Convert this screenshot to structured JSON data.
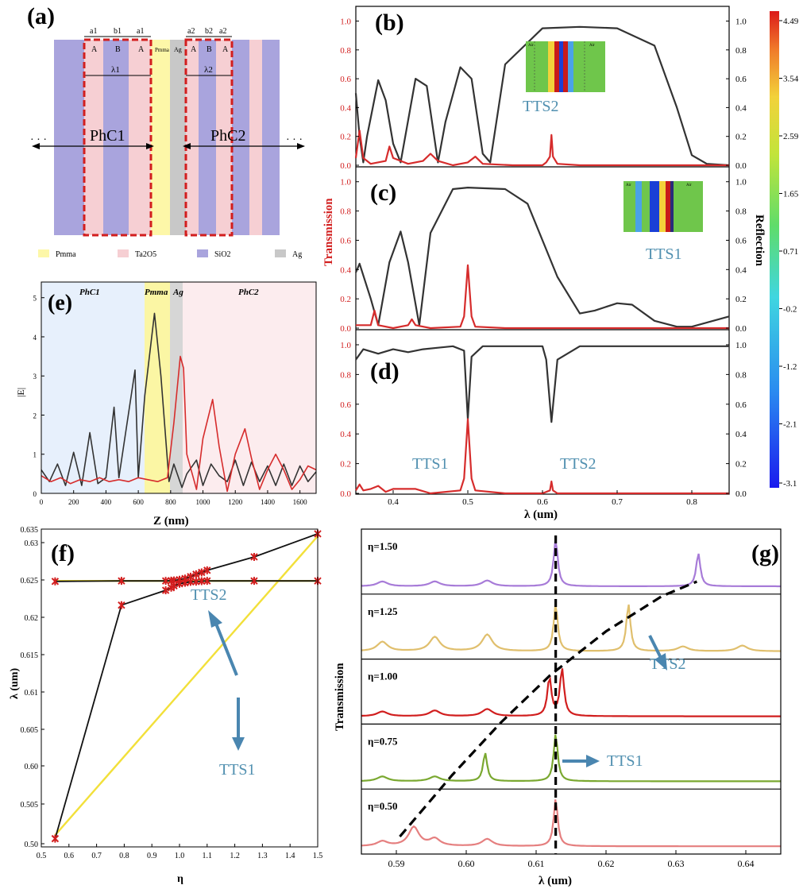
{
  "figure_labels": {
    "a": "(a)",
    "b": "(b)",
    "c": "(c)",
    "d": "(d)",
    "e": "(e)",
    "f": "(f)",
    "g": "(g)"
  },
  "panel_a": {
    "dims_left": [
      "a1",
      "b1",
      "a1"
    ],
    "dims_right": [
      "a2",
      "b2",
      "a2"
    ],
    "layers_left": [
      "A",
      "B",
      "A"
    ],
    "layers_right": [
      "A",
      "B",
      "A"
    ],
    "center_labels": [
      "Pmma",
      "Ag"
    ],
    "lambda_left": "λ1",
    "lambda_right": "λ2",
    "phc_left": "PhC1",
    "phc_right": "PhC2",
    "dots": "· · ·",
    "legend": [
      {
        "name": "Pmma",
        "color": "#fdf7a8"
      },
      {
        "name": "Ta2O5",
        "color": "#f6cfd3"
      },
      {
        "name": "SiO2",
        "color": "#a9a4dd"
      },
      {
        "name": "Ag",
        "color": "#c8c8c8"
      }
    ]
  },
  "shared_labels": {
    "transmission": "Transmission",
    "reflection": "Reflection",
    "x_lambda": "λ (um)",
    "tts1": "TTS1",
    "tts2": "TTS2"
  },
  "colorbar": {
    "ticks": [
      "4.49",
      "3.54",
      "2.59",
      "1.65",
      "0.71",
      "-0.2",
      "-1.2",
      "-2.1",
      "-3.1"
    ],
    "inset_air": "Air"
  },
  "chart_data": [
    {
      "id": "b",
      "type": "line",
      "xlabel": "",
      "ylabel": "",
      "xlim": [
        0.35,
        0.85
      ],
      "ylim": [
        0,
        1.08
      ],
      "yticks": [
        "0.0",
        "0.2",
        "0.4",
        "0.6",
        "0.8",
        "1.0"
      ],
      "series": [
        {
          "color": "#333333",
          "x": [
            0.35,
            0.355,
            0.36,
            0.365,
            0.38,
            0.39,
            0.4,
            0.41,
            0.43,
            0.445,
            0.46,
            0.47,
            0.49,
            0.505,
            0.52,
            0.53,
            0.55,
            0.6,
            0.65,
            0.7,
            0.75,
            0.78,
            0.8,
            0.82,
            0.85
          ],
          "y": [
            0.5,
            0.2,
            0.02,
            0.2,
            0.59,
            0.45,
            0.15,
            0.02,
            0.6,
            0.55,
            0.02,
            0.3,
            0.68,
            0.6,
            0.08,
            0.02,
            0.7,
            0.95,
            0.96,
            0.95,
            0.83,
            0.4,
            0.07,
            0.01,
            0.0
          ]
        },
        {
          "color": "#d62c2c",
          "x": [
            0.35,
            0.355,
            0.36,
            0.37,
            0.39,
            0.395,
            0.4,
            0.42,
            0.44,
            0.45,
            0.46,
            0.48,
            0.5,
            0.51,
            0.52,
            0.56,
            0.6,
            0.605,
            0.61,
            0.612,
            0.614,
            0.62,
            0.65,
            0.75,
            0.85
          ],
          "y": [
            0.05,
            0.24,
            0.05,
            0.01,
            0.03,
            0.13,
            0.05,
            0.01,
            0.03,
            0.08,
            0.03,
            0.0,
            0.02,
            0.06,
            0.01,
            0.0,
            0.0,
            0.02,
            0.06,
            0.21,
            0.06,
            0.01,
            0.0,
            0.0,
            0.0
          ]
        }
      ]
    },
    {
      "id": "c",
      "type": "line",
      "xlabel": "",
      "ylabel": "Transmission",
      "xlim": [
        0.35,
        0.85
      ],
      "ylim": [
        0,
        1.08
      ],
      "yticks": [
        "0.0",
        "0.2",
        "0.4",
        "0.6",
        "0.8",
        "1.0"
      ],
      "series": [
        {
          "color": "#333333",
          "x": [
            0.35,
            0.355,
            0.37,
            0.38,
            0.395,
            0.41,
            0.42,
            0.435,
            0.45,
            0.48,
            0.5,
            0.55,
            0.58,
            0.62,
            0.65,
            0.67,
            0.7,
            0.72,
            0.75,
            0.78,
            0.8,
            0.85
          ],
          "y": [
            0.38,
            0.44,
            0.2,
            0.02,
            0.45,
            0.66,
            0.45,
            0.02,
            0.65,
            0.95,
            0.96,
            0.95,
            0.85,
            0.35,
            0.1,
            0.12,
            0.17,
            0.16,
            0.05,
            0.01,
            0.01,
            0.08
          ]
        },
        {
          "color": "#d62c2c",
          "x": [
            0.35,
            0.37,
            0.375,
            0.38,
            0.4,
            0.42,
            0.425,
            0.43,
            0.45,
            0.49,
            0.495,
            0.5,
            0.505,
            0.51,
            0.55,
            0.85
          ],
          "y": [
            0.02,
            0.02,
            0.12,
            0.02,
            0.0,
            0.02,
            0.06,
            0.02,
            0.0,
            0.01,
            0.08,
            0.43,
            0.08,
            0.01,
            0.0,
            0.0
          ]
        }
      ]
    },
    {
      "id": "d",
      "type": "line",
      "xlabel": "λ (um)",
      "ylabel": "",
      "xlim": [
        0.35,
        0.85
      ],
      "ylim": [
        0,
        1.08
      ],
      "xticks": [
        "0.4",
        "0.5",
        "0.6",
        "0.7",
        "0.8"
      ],
      "yticks": [
        "0.0",
        "0.2",
        "0.4",
        "0.6",
        "0.8",
        "1.0"
      ],
      "series": [
        {
          "color": "#333333",
          "x": [
            0.35,
            0.36,
            0.38,
            0.4,
            0.42,
            0.44,
            0.46,
            0.48,
            0.495,
            0.5,
            0.505,
            0.52,
            0.55,
            0.6,
            0.605,
            0.612,
            0.62,
            0.65,
            0.7,
            0.85
          ],
          "y": [
            0.9,
            0.97,
            0.94,
            0.97,
            0.95,
            0.97,
            0.98,
            0.99,
            0.96,
            0.5,
            0.92,
            0.99,
            0.99,
            0.99,
            0.9,
            0.48,
            0.9,
            0.99,
            0.99,
            0.99
          ]
        },
        {
          "color": "#d62c2c",
          "x": [
            0.35,
            0.355,
            0.36,
            0.37,
            0.38,
            0.39,
            0.4,
            0.43,
            0.45,
            0.49,
            0.495,
            0.5,
            0.505,
            0.51,
            0.55,
            0.6,
            0.61,
            0.612,
            0.614,
            0.62,
            0.85
          ],
          "y": [
            0.02,
            0.06,
            0.02,
            0.03,
            0.05,
            0.01,
            0.03,
            0.03,
            0.0,
            0.02,
            0.1,
            0.5,
            0.1,
            0.02,
            0.0,
            0.0,
            0.02,
            0.08,
            0.02,
            0.0,
            0.0
          ]
        }
      ]
    },
    {
      "id": "e",
      "type": "line",
      "xlabel": "Z (nm)",
      "ylabel": "|E|",
      "xlim": [
        0,
        1700
      ],
      "ylim": [
        0,
        5.4
      ],
      "xticks": [
        "0",
        "200",
        "400",
        "600",
        "800",
        "1000",
        "1200",
        "1400",
        "1600"
      ],
      "yticks": [
        "0",
        "1",
        "2",
        "3",
        "4",
        "5"
      ],
      "regions": [
        {
          "label": "PhC1",
          "from": 0,
          "to": 640
        },
        {
          "label": "Pmma",
          "from": 640,
          "to": 790
        },
        {
          "label": "Ag",
          "from": 790,
          "to": 870
        },
        {
          "label": "PhC2",
          "from": 870,
          "to": 1700
        }
      ],
      "series": [
        {
          "color": "#333333",
          "x": [
            0,
            50,
            100,
            150,
            200,
            250,
            300,
            350,
            400,
            450,
            480,
            520,
            580,
            600,
            640,
            700,
            740,
            790,
            820,
            870,
            900,
            960,
            1000,
            1050,
            1100,
            1150,
            1200,
            1250,
            1300,
            1350,
            1400,
            1450,
            1500,
            1550,
            1600,
            1650,
            1700
          ],
          "y": [
            0.6,
            0.3,
            0.75,
            0.2,
            1.05,
            0.2,
            1.55,
            0.25,
            0.4,
            2.2,
            0.4,
            1.5,
            3.15,
            0.4,
            2.5,
            4.6,
            3.0,
            0.3,
            0.75,
            0.15,
            0.5,
            0.85,
            0.2,
            0.75,
            0.45,
            0.3,
            0.85,
            0.2,
            0.8,
            0.3,
            0.7,
            0.2,
            0.75,
            0.2,
            0.7,
            0.3,
            0.55
          ]
        },
        {
          "color": "#d62c2c",
          "x": [
            0,
            60,
            120,
            180,
            240,
            300,
            360,
            420,
            480,
            540,
            600,
            660,
            720,
            780,
            820,
            860,
            880,
            900,
            960,
            1000,
            1060,
            1100,
            1150,
            1200,
            1260,
            1300,
            1350,
            1400,
            1450,
            1500,
            1550,
            1600,
            1650,
            1700
          ],
          "y": [
            0.45,
            0.3,
            0.4,
            0.25,
            0.35,
            0.3,
            0.4,
            0.3,
            0.35,
            0.3,
            0.4,
            0.35,
            0.3,
            0.4,
            1.8,
            3.5,
            3.2,
            1.0,
            0.1,
            1.4,
            2.4,
            1.2,
            0.05,
            1.0,
            1.65,
            0.9,
            0.1,
            0.6,
            1.0,
            0.6,
            0.1,
            0.35,
            0.7,
            0.6
          ]
        }
      ]
    },
    {
      "id": "f",
      "type": "line",
      "xlabel": "η",
      "ylabel": "λ (um)",
      "xlim": [
        0.5,
        1.5
      ],
      "ylim": [
        0.5,
        0.635
      ],
      "xticks": [
        "0.5",
        "0.6",
        "0.7",
        "0.8",
        "0.9",
        "1.0",
        "1.1",
        "1.2",
        "1.3",
        "1.4",
        "1.5"
      ],
      "yticks": [
        "0.50",
        "0.505",
        "0.60",
        "0.605",
        "0.61",
        "0.615",
        "0.62",
        "0.625",
        "0.63",
        "0.635"
      ],
      "markers_eta": [
        0.55,
        0.79,
        0.95,
        0.97,
        0.98,
        1.0,
        1.02,
        1.04,
        1.06,
        1.08,
        1.1,
        1.27,
        1.5
      ],
      "series": [
        {
          "name": "TTS2",
          "color": "#111111",
          "x": [
            0.55,
            0.79,
            0.95,
            0.97,
            0.98,
            1.0,
            1.02,
            1.04,
            1.06,
            1.08,
            1.1,
            1.27,
            1.5
          ],
          "y": [
            0.6128,
            0.613,
            0.613,
            0.6131,
            0.6132,
            0.6135,
            0.614,
            0.6148,
            0.6158,
            0.6166,
            0.6175,
            0.6232,
            0.633
          ]
        },
        {
          "name": "TTS1",
          "color": "#111111",
          "x": [
            0.55,
            0.79,
            0.95,
            0.97,
            0.98,
            1.0,
            1.02,
            1.04,
            1.06,
            1.08,
            1.1,
            1.27,
            1.5
          ],
          "y": [
            0.5035,
            0.6027,
            0.609,
            0.6101,
            0.6109,
            0.6118,
            0.6122,
            0.6126,
            0.6127,
            0.6129,
            0.613,
            0.613,
            0.613
          ]
        }
      ],
      "annotations": [
        "TTS2",
        "TTS1"
      ]
    },
    {
      "id": "g",
      "type": "line",
      "xlabel": "λ (um)",
      "ylabel": "Transmission",
      "xlim": [
        0.585,
        0.645
      ],
      "xticks": [
        "0.59",
        "0.60",
        "0.61",
        "0.62",
        "0.63",
        "0.64"
      ],
      "series": [
        {
          "name": "η=1.50",
          "color": "#a77bd8",
          "peaks": [
            [
              0.588,
              0.1
            ],
            [
              0.5955,
              0.1
            ],
            [
              0.603,
              0.12
            ],
            [
              0.6128,
              1.0
            ],
            [
              0.6332,
              0.7
            ]
          ]
        },
        {
          "name": "η=1.25",
          "color": "#e0bf6d",
          "peaks": [
            [
              0.588,
              0.2
            ],
            [
              0.5955,
              0.3
            ],
            [
              0.603,
              0.35
            ],
            [
              0.6128,
              1.0
            ],
            [
              0.6232,
              1.0
            ],
            [
              0.631,
              0.1
            ],
            [
              0.6395,
              0.12
            ]
          ]
        },
        {
          "name": "η=1.00",
          "color": "#d11e1e",
          "peaks": [
            [
              0.588,
              0.1
            ],
            [
              0.5955,
              0.12
            ],
            [
              0.603,
              0.15
            ],
            [
              0.6119,
              0.8
            ],
            [
              0.6137,
              1.0
            ]
          ]
        },
        {
          "name": "η=0.75",
          "color": "#7aa830",
          "peaks": [
            [
              0.588,
              0.1
            ],
            [
              0.5955,
              0.1
            ],
            [
              0.6027,
              0.6
            ],
            [
              0.6128,
              1.0
            ]
          ]
        },
        {
          "name": "η=0.50",
          "color": "#e57f7f",
          "peaks": [
            [
              0.588,
              0.1
            ],
            [
              0.5925,
              0.4
            ],
            [
              0.5955,
              0.15
            ],
            [
              0.603,
              0.15
            ],
            [
              0.6128,
              1.0
            ]
          ]
        }
      ],
      "dashed_curve": [
        [
          0.5905,
          0.0
        ],
        [
          0.598,
          0.21
        ],
        [
          0.605,
          0.39
        ],
        [
          0.612,
          0.55
        ],
        [
          0.62,
          0.7
        ],
        [
          0.628,
          0.82
        ],
        [
          0.633,
          0.87
        ]
      ],
      "vertical_dashed_x": 0.6128,
      "annotations": [
        "TTS2",
        "TTS1"
      ]
    }
  ]
}
